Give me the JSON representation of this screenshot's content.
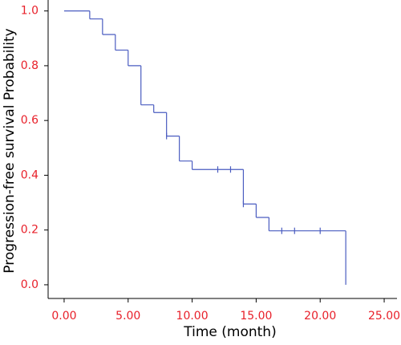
{
  "chart_data": {
    "type": "step",
    "x_label": "Time (month)",
    "y_label": "Progression-free survival Probability",
    "x": [
      0,
      2,
      3,
      4,
      5,
      6,
      7,
      8,
      9,
      10,
      14,
      15,
      16,
      22
    ],
    "values": [
      1.0,
      0.971,
      0.914,
      0.857,
      0.8,
      0.657,
      0.629,
      0.543,
      0.452,
      0.421,
      0.295,
      0.246,
      0.197,
      0.0
    ],
    "censored": {
      "x": [
        8,
        12,
        13,
        14,
        17,
        18,
        20
      ],
      "values": [
        0.543,
        0.421,
        0.421,
        0.295,
        0.197,
        0.197,
        0.197
      ]
    },
    "color": "#4a5cc0",
    "tick_color": "#e8202a",
    "xlim": [
      -1.25,
      26
    ],
    "ylim": [
      -0.05,
      1.04
    ],
    "xticks": [
      {
        "value": 0,
        "label": "0.00"
      },
      {
        "value": 5,
        "label": "5.00"
      },
      {
        "value": 10,
        "label": "10.00"
      },
      {
        "value": 15,
        "label": "15.00"
      },
      {
        "value": 20,
        "label": "20.00"
      },
      {
        "value": 25,
        "label": "25.00"
      }
    ],
    "yticks": [
      {
        "value": 0,
        "label": "0.0"
      },
      0.2,
      0.4,
      0.6,
      0.8,
      {
        "value": 1,
        "label": "1.0"
      }
    ],
    "grid": false
  }
}
